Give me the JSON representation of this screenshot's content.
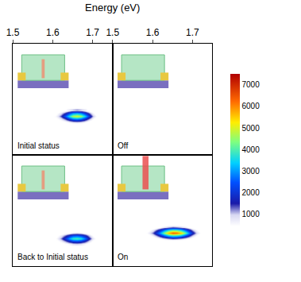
{
  "chart_data": {
    "type": "heatmap",
    "x_title": "Energy (eV)",
    "x": [
      1.58,
      1.59,
      1.6,
      1.61,
      1.62,
      1.63,
      1.64,
      1.65,
      1.66,
      1.67,
      1.68,
      1.69,
      1.7,
      1.71,
      1.72,
      1.73
    ],
    "y": [
      4,
      4.5,
      5,
      5.5,
      6,
      6.5,
      7,
      7.5,
      8
    ],
    "xlim": [
      1.5,
      1.75
    ],
    "xticks": [
      1.5,
      1.6,
      1.7
    ],
    "ylim": [
      0,
      20
    ],
    "tick_labels": "x",
    "colorbar": {
      "range": [
        0,
        7500
      ],
      "ticks": [
        1000,
        2000,
        3000,
        4000,
        5000,
        6000,
        7000
      ]
    },
    "panels": [
      {
        "title": "Initial status",
        "cells": [
          [
            0,
            0,
            0,
            0,
            0,
            0,
            0,
            0,
            0,
            0,
            0,
            0,
            0,
            0,
            0,
            0
          ],
          [
            0,
            0,
            0,
            0,
            0,
            0,
            0,
            0,
            0,
            0,
            0,
            0,
            0,
            0,
            0,
            0
          ],
          [
            0,
            0,
            0,
            0,
            0,
            0,
            0,
            0,
            0,
            0,
            0,
            0,
            0,
            0,
            0,
            0
          ],
          [
            0,
            0,
            0,
            0,
            0,
            0,
            0,
            0,
            0,
            0,
            0,
            0,
            0,
            0,
            0,
            0
          ],
          [
            0,
            0,
            0,
            0,
            200,
            400,
            700,
            1000,
            1100,
            1000,
            700,
            300,
            0,
            0,
            0,
            0
          ],
          [
            0,
            0,
            0,
            400,
            800,
            1400,
            2200,
            2900,
            3100,
            2800,
            2100,
            1300,
            600,
            0,
            0,
            0
          ],
          [
            0,
            0,
            300,
            700,
            1400,
            2400,
            3600,
            4700,
            5000,
            4600,
            3500,
            2200,
            1100,
            400,
            0,
            0
          ],
          [
            0,
            0,
            0,
            400,
            800,
            1400,
            2200,
            2900,
            3100,
            2800,
            2100,
            1300,
            600,
            0,
            0,
            0
          ],
          [
            0,
            0,
            0,
            0,
            200,
            400,
            700,
            1000,
            1100,
            1000,
            700,
            300,
            0,
            0,
            0,
            0
          ]
        ]
      },
      {
        "title": "Off",
        "cells": [
          [
            0,
            0,
            0,
            0,
            0,
            0,
            0,
            0,
            0,
            0,
            0,
            0,
            0,
            0,
            0,
            0
          ],
          [
            0,
            0,
            0,
            0,
            0,
            0,
            0,
            0,
            0,
            0,
            0,
            0,
            0,
            0,
            0,
            0
          ],
          [
            0,
            0,
            0,
            0,
            0,
            0,
            0,
            0,
            0,
            0,
            0,
            0,
            0,
            0,
            0,
            0
          ],
          [
            0,
            0,
            0,
            0,
            0,
            0,
            0,
            0,
            0,
            0,
            0,
            0,
            0,
            0,
            0,
            0
          ],
          [
            0,
            0,
            0,
            0,
            0,
            0,
            0,
            0,
            0,
            0,
            0,
            0,
            0,
            0,
            0,
            0
          ],
          [
            0,
            0,
            0,
            0,
            0,
            0,
            0,
            0,
            0,
            0,
            0,
            0,
            0,
            0,
            0,
            0
          ],
          [
            0,
            0,
            0,
            0,
            0,
            0,
            0,
            0,
            0,
            0,
            0,
            0,
            0,
            0,
            0,
            0
          ],
          [
            0,
            0,
            0,
            0,
            0,
            0,
            0,
            0,
            0,
            0,
            0,
            0,
            0,
            0,
            0,
            0
          ],
          [
            0,
            0,
            0,
            0,
            0,
            0,
            0,
            0,
            0,
            0,
            0,
            0,
            0,
            0,
            0,
            0
          ]
        ]
      },
      {
        "title": "Back to Initial status",
        "cells": [
          [
            0,
            0,
            0,
            0,
            0,
            300,
            500,
            700,
            800,
            700,
            500,
            200,
            0,
            0,
            0,
            0
          ],
          [
            0,
            0,
            0,
            300,
            700,
            1200,
            1800,
            2300,
            2400,
            2200,
            1700,
            1000,
            400,
            0,
            0,
            0
          ],
          [
            0,
            0,
            200,
            600,
            1200,
            2000,
            3000,
            3800,
            4000,
            3700,
            2800,
            1700,
            800,
            300,
            0,
            0
          ],
          [
            0,
            0,
            0,
            300,
            700,
            1200,
            1800,
            2300,
            2400,
            2200,
            1700,
            1000,
            400,
            0,
            0,
            0
          ],
          [
            0,
            0,
            0,
            0,
            0,
            300,
            500,
            700,
            800,
            700,
            500,
            200,
            0,
            0,
            0,
            0
          ],
          [
            0,
            0,
            0,
            0,
            0,
            0,
            0,
            0,
            0,
            0,
            0,
            0,
            0,
            0,
            0,
            0
          ],
          [
            0,
            0,
            0,
            0,
            0,
            0,
            0,
            0,
            0,
            0,
            0,
            0,
            0,
            0,
            0,
            0
          ],
          [
            0,
            0,
            0,
            0,
            0,
            0,
            0,
            0,
            0,
            0,
            0,
            0,
            0,
            0,
            0,
            0
          ],
          [
            0,
            0,
            0,
            0,
            0,
            0,
            0,
            0,
            0,
            0,
            0,
            0,
            0,
            0,
            0,
            0
          ]
        ]
      },
      {
        "title": "On",
        "cells": [
          [
            0,
            0,
            0,
            0,
            0,
            0,
            0,
            0,
            0,
            0,
            0,
            0,
            0,
            0,
            0,
            0
          ],
          [
            0,
            0,
            0,
            0,
            0,
            0,
            0,
            0,
            0,
            0,
            0,
            0,
            0,
            0,
            0,
            0
          ],
          [
            0,
            0,
            0,
            300,
            600,
            900,
            1200,
            1400,
            1300,
            1100,
            800,
            500,
            200,
            0,
            0,
            0
          ],
          [
            0,
            300,
            700,
            1300,
            2000,
            2800,
            3500,
            3900,
            3800,
            3400,
            2600,
            1800,
            1000,
            500,
            0,
            0
          ],
          [
            300,
            700,
            1300,
            2200,
            3300,
            4600,
            5800,
            6500,
            6300,
            5600,
            4400,
            3000,
            1800,
            900,
            400,
            0
          ],
          [
            0,
            300,
            700,
            1300,
            2000,
            2800,
            3500,
            3900,
            3800,
            3400,
            2600,
            1800,
            1000,
            500,
            0,
            0
          ],
          [
            0,
            0,
            0,
            300,
            600,
            900,
            1200,
            1400,
            1300,
            1100,
            800,
            500,
            200,
            0,
            0,
            0
          ],
          [
            0,
            0,
            0,
            0,
            0,
            0,
            0,
            0,
            0,
            0,
            0,
            0,
            0,
            0,
            0,
            0
          ],
          [
            0,
            0,
            0,
            0,
            0,
            0,
            0,
            0,
            0,
            0,
            0,
            0,
            0,
            0,
            0,
            0
          ]
        ]
      }
    ]
  }
}
